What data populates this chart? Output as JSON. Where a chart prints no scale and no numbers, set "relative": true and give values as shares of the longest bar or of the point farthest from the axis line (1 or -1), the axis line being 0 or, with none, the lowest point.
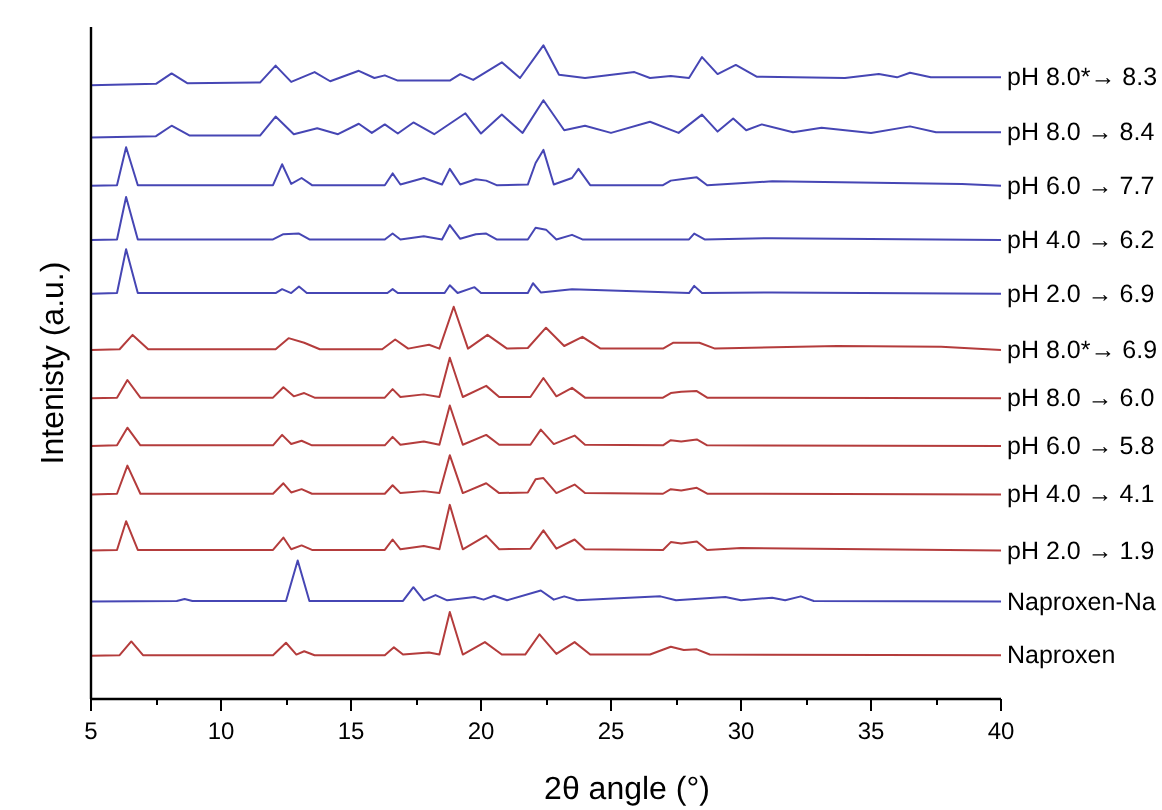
{
  "chart_data": {
    "type": "line",
    "relative": true,
    "xlabel": "2θ angle (°)",
    "ylabel": "Intenisty (a.u.)",
    "xlim": [
      5,
      40
    ],
    "xticks": [
      5,
      10,
      15,
      20,
      25,
      30,
      35,
      40
    ],
    "tick_labels": "x",
    "series": [
      {
        "name": "pH 8.0*→ 8.3",
        "color": "#4646b4",
        "x": [
          5,
          7.5,
          8.1,
          8.7,
          11.5,
          12.1,
          12.7,
          13.6,
          14.2,
          15.3,
          15.9,
          16.3,
          16.8,
          18.8,
          19.2,
          19.7,
          20.8,
          21.5,
          22.4,
          23.0,
          24,
          25.9,
          26.5,
          27.3,
          28.0,
          28.5,
          29.1,
          29.8,
          30.6,
          34,
          35.3,
          36.0,
          36.5,
          37.3,
          40
        ],
        "values": [
          0.939,
          0.941,
          0.957,
          0.942,
          0.943,
          0.969,
          0.944,
          0.959,
          0.945,
          0.961,
          0.95,
          0.954,
          0.946,
          0.946,
          0.956,
          0.947,
          0.974,
          0.95,
          1.0,
          0.955,
          0.95,
          0.959,
          0.95,
          0.953,
          0.95,
          0.982,
          0.956,
          0.97,
          0.952,
          0.95,
          0.956,
          0.951,
          0.958,
          0.951,
          0.951
        ]
      },
      {
        "name": "pH 8.0 → 8.4",
        "color": "#4646b4",
        "x": [
          5,
          7.5,
          8.1,
          8.8,
          11.5,
          12.1,
          12.8,
          13.7,
          14.5,
          15.3,
          15.8,
          16.3,
          16.8,
          17.4,
          18.2,
          19.4,
          20.0,
          20.8,
          21.6,
          22.4,
          23.2,
          24.0,
          25.0,
          26.5,
          27.6,
          28.5,
          29.1,
          29.7,
          30.2,
          30.8,
          32.0,
          33.1,
          35,
          36.5,
          37.5,
          40
        ],
        "values": [
          0.859,
          0.861,
          0.877,
          0.862,
          0.862,
          0.891,
          0.864,
          0.873,
          0.864,
          0.88,
          0.866,
          0.879,
          0.865,
          0.882,
          0.864,
          0.896,
          0.865,
          0.894,
          0.866,
          0.916,
          0.87,
          0.877,
          0.866,
          0.883,
          0.866,
          0.894,
          0.868,
          0.888,
          0.87,
          0.879,
          0.867,
          0.874,
          0.866,
          0.876,
          0.867,
          0.867
        ]
      },
      {
        "name": "pH 6.0 → 7.7",
        "color": "#4646b4",
        "x": [
          5,
          6.0,
          6.35,
          6.8,
          12.0,
          12.35,
          12.7,
          13.1,
          13.5,
          16.3,
          16.6,
          16.9,
          17.8,
          18.5,
          18.8,
          19.2,
          19.8,
          20.2,
          20.6,
          21.8,
          22.1,
          22.4,
          22.8,
          23.5,
          23.75,
          24.2,
          27.0,
          27.3,
          27.7,
          28.3,
          28.7,
          31.2,
          38.5,
          40
        ],
        "values": [
          0.785,
          0.786,
          0.844,
          0.786,
          0.786,
          0.818,
          0.788,
          0.797,
          0.786,
          0.786,
          0.804,
          0.787,
          0.797,
          0.787,
          0.811,
          0.787,
          0.795,
          0.793,
          0.786,
          0.787,
          0.82,
          0.84,
          0.787,
          0.797,
          0.811,
          0.786,
          0.786,
          0.793,
          0.795,
          0.798,
          0.786,
          0.792,
          0.788,
          0.785
        ]
      },
      {
        "name": "pH 4.0 → 6.2",
        "color": "#4646b4",
        "x": [
          5,
          6.0,
          6.35,
          6.8,
          12.0,
          12.4,
          13.0,
          13.4,
          16.3,
          16.6,
          16.9,
          17.8,
          18.5,
          18.8,
          19.2,
          19.8,
          20.2,
          20.6,
          21.8,
          22.1,
          22.5,
          22.9,
          23.5,
          23.9,
          28.0,
          28.2,
          28.6,
          31.2,
          40
        ],
        "values": [
          0.702,
          0.703,
          0.768,
          0.703,
          0.703,
          0.711,
          0.712,
          0.703,
          0.703,
          0.712,
          0.703,
          0.708,
          0.703,
          0.725,
          0.704,
          0.711,
          0.712,
          0.703,
          0.703,
          0.721,
          0.718,
          0.703,
          0.71,
          0.703,
          0.703,
          0.712,
          0.703,
          0.705,
          0.702
        ]
      },
      {
        "name": "pH 2.0 → 6.9",
        "color": "#4646b4",
        "x": [
          5,
          6.0,
          6.35,
          6.8,
          12.1,
          12.35,
          12.7,
          13.0,
          13.3,
          16.4,
          16.6,
          16.8,
          18.6,
          18.8,
          19.1,
          19.75,
          20.0,
          21.8,
          22.0,
          22.3,
          23.5,
          28.0,
          28.2,
          28.5,
          31.2,
          40
        ],
        "values": [
          0.62,
          0.621,
          0.688,
          0.621,
          0.621,
          0.627,
          0.621,
          0.631,
          0.621,
          0.621,
          0.627,
          0.621,
          0.621,
          0.633,
          0.621,
          0.63,
          0.621,
          0.621,
          0.636,
          0.622,
          0.627,
          0.621,
          0.632,
          0.621,
          0.622,
          0.62
        ]
      },
      {
        "name": "pH 8.0*→ 6.9",
        "color": "#b43c3c",
        "x": [
          5,
          6.1,
          6.6,
          7.2,
          12.1,
          12.6,
          13.2,
          13.8,
          16.2,
          16.7,
          17.2,
          18.0,
          18.4,
          18.95,
          19.5,
          20.25,
          21.0,
          21.8,
          22.5,
          23.2,
          23.9,
          24.6,
          27.0,
          27.4,
          28.4,
          29.0,
          33.7,
          37.7,
          40
        ],
        "values": [
          0.534,
          0.535,
          0.557,
          0.535,
          0.535,
          0.552,
          0.545,
          0.535,
          0.535,
          0.55,
          0.536,
          0.542,
          0.536,
          0.6,
          0.536,
          0.557,
          0.536,
          0.537,
          0.568,
          0.54,
          0.554,
          0.536,
          0.536,
          0.545,
          0.545,
          0.536,
          0.54,
          0.539,
          0.534
        ]
      },
      {
        "name": "pH 8.0 → 6.0",
        "color": "#b43c3c",
        "x": [
          5,
          6.0,
          6.4,
          6.9,
          12.0,
          12.4,
          12.8,
          13.2,
          13.6,
          16.3,
          16.6,
          16.9,
          17.8,
          18.4,
          18.8,
          19.3,
          20.2,
          20.7,
          21.9,
          22.4,
          22.9,
          23.5,
          24.0,
          27.0,
          27.3,
          27.7,
          28.3,
          28.7,
          40
        ],
        "values": [
          0.46,
          0.461,
          0.488,
          0.461,
          0.461,
          0.477,
          0.463,
          0.468,
          0.461,
          0.461,
          0.474,
          0.462,
          0.466,
          0.462,
          0.522,
          0.462,
          0.479,
          0.462,
          0.462,
          0.491,
          0.463,
          0.476,
          0.461,
          0.461,
          0.468,
          0.47,
          0.471,
          0.461,
          0.46
        ]
      },
      {
        "name": "pH 6.0 → 5.8",
        "color": "#b43c3c",
        "x": [
          5,
          6.0,
          6.4,
          6.9,
          12.0,
          12.35,
          12.7,
          13.1,
          13.5,
          16.3,
          16.6,
          16.9,
          17.8,
          18.4,
          18.8,
          19.3,
          20.2,
          20.7,
          21.9,
          22.3,
          22.8,
          23.6,
          24.0,
          27.0,
          27.3,
          27.7,
          28.3,
          28.7,
          40
        ],
        "values": [
          0.387,
          0.388,
          0.415,
          0.388,
          0.388,
          0.404,
          0.39,
          0.395,
          0.388,
          0.388,
          0.401,
          0.389,
          0.394,
          0.389,
          0.449,
          0.389,
          0.404,
          0.389,
          0.389,
          0.412,
          0.39,
          0.403,
          0.389,
          0.388,
          0.396,
          0.394,
          0.397,
          0.388,
          0.387
        ]
      },
      {
        "name": "pH 4.0 → 4.1",
        "color": "#b43c3c",
        "x": [
          5,
          6.0,
          6.4,
          6.9,
          12.0,
          12.4,
          12.7,
          13.1,
          13.5,
          16.3,
          16.6,
          16.9,
          17.8,
          18.4,
          18.8,
          19.3,
          20.2,
          20.7,
          21.8,
          22.1,
          22.4,
          22.9,
          23.6,
          24.0,
          27.0,
          27.3,
          27.7,
          28.3,
          28.7,
          40
        ],
        "values": [
          0.313,
          0.314,
          0.357,
          0.314,
          0.314,
          0.33,
          0.316,
          0.321,
          0.314,
          0.314,
          0.327,
          0.315,
          0.318,
          0.315,
          0.373,
          0.315,
          0.33,
          0.315,
          0.316,
          0.336,
          0.338,
          0.315,
          0.328,
          0.315,
          0.314,
          0.321,
          0.319,
          0.323,
          0.314,
          0.313
        ]
      },
      {
        "name": "pH 2.0 → 1.9",
        "color": "#b43c3c",
        "x": [
          5,
          6.0,
          6.35,
          6.8,
          12.0,
          12.4,
          12.7,
          13.1,
          13.5,
          16.3,
          16.6,
          16.9,
          17.8,
          18.4,
          18.8,
          19.3,
          20.2,
          20.7,
          21.9,
          22.4,
          22.9,
          23.6,
          24.0,
          27.0,
          27.3,
          27.7,
          28.3,
          28.7,
          30.0,
          40
        ],
        "values": [
          0.227,
          0.228,
          0.272,
          0.228,
          0.228,
          0.247,
          0.229,
          0.235,
          0.228,
          0.228,
          0.244,
          0.229,
          0.234,
          0.229,
          0.297,
          0.229,
          0.25,
          0.229,
          0.23,
          0.258,
          0.23,
          0.244,
          0.229,
          0.228,
          0.24,
          0.238,
          0.241,
          0.228,
          0.231,
          0.227
        ]
      },
      {
        "name": "Naproxen-Na",
        "color": "#4646b4",
        "x": [
          5,
          8.3,
          8.6,
          8.9,
          12.5,
          12.95,
          13.4,
          17.0,
          17.4,
          17.8,
          18.25,
          18.7,
          19.75,
          20.1,
          20.5,
          21.0,
          22.3,
          22.8,
          23.2,
          23.7,
          26.9,
          27.5,
          29.4,
          30.0,
          31.2,
          31.7,
          32.3,
          32.8,
          40
        ],
        "values": [
          0.149,
          0.15,
          0.153,
          0.15,
          0.15,
          0.212,
          0.15,
          0.15,
          0.171,
          0.151,
          0.159,
          0.151,
          0.156,
          0.152,
          0.158,
          0.151,
          0.166,
          0.152,
          0.157,
          0.151,
          0.157,
          0.151,
          0.156,
          0.151,
          0.155,
          0.151,
          0.157,
          0.15,
          0.149
        ]
      },
      {
        "name": "Naproxen",
        "color": "#b43c3c",
        "x": [
          5,
          6.1,
          6.55,
          7.0,
          12.0,
          12.5,
          12.9,
          13.2,
          13.6,
          16.3,
          16.65,
          17.0,
          18.0,
          18.4,
          18.8,
          19.3,
          20.15,
          20.8,
          21.7,
          22.25,
          22.9,
          23.6,
          24.2,
          26.5,
          27.3,
          27.8,
          28.3,
          28.8,
          40
        ],
        "values": [
          0.066,
          0.067,
          0.088,
          0.067,
          0.067,
          0.086,
          0.068,
          0.073,
          0.067,
          0.067,
          0.079,
          0.068,
          0.071,
          0.068,
          0.133,
          0.068,
          0.087,
          0.068,
          0.068,
          0.099,
          0.069,
          0.087,
          0.068,
          0.068,
          0.08,
          0.075,
          0.076,
          0.068,
          0.067
        ]
      }
    ]
  }
}
